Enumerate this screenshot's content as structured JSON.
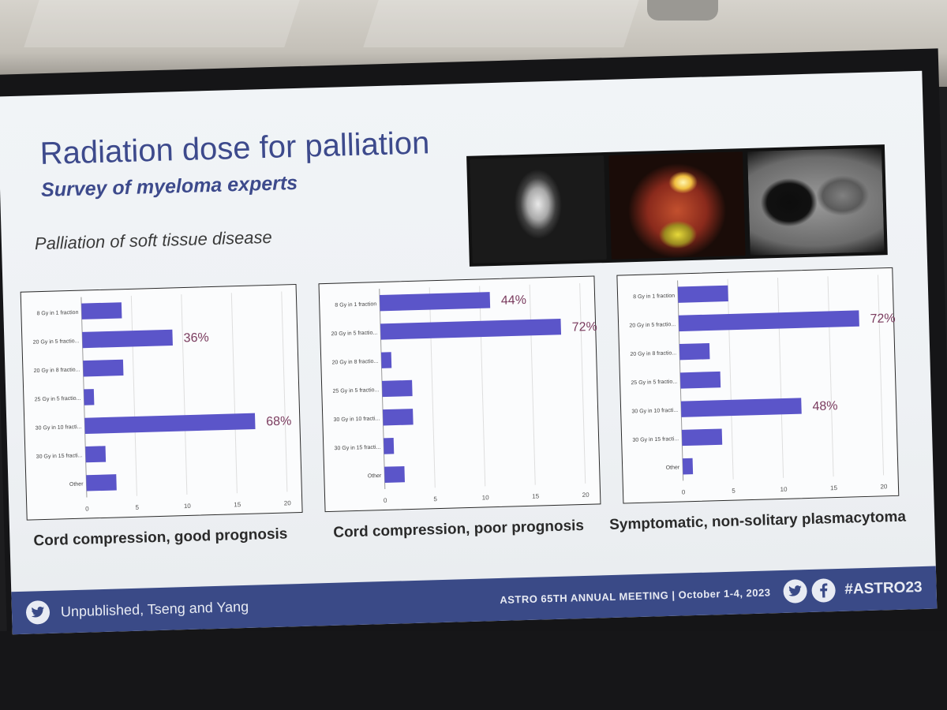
{
  "slide": {
    "title": "Radiation dose for palliation",
    "subtitle": "Survey of myeloma experts",
    "section": "Palliation of soft tissue disease"
  },
  "images": {
    "scan_1": "axial-mri-scan",
    "scan_2": "pet-ct-head-scan",
    "scan_3": "chest-ct-scan"
  },
  "footer": {
    "source": "Unpublished, Tseng and Yang",
    "meeting": "ASTRO 65TH ANNUAL MEETING  |  October 1-4, 2023",
    "hashtag": "#ASTRO23",
    "icons": [
      "twitter-icon",
      "twitter-icon",
      "facebook-icon"
    ]
  },
  "colors": {
    "bar": "#5b55c9",
    "title": "#3d4a8c",
    "annotation": "#7a3b5e",
    "footer_bg": "#3a4a87"
  },
  "chart_data": [
    {
      "type": "bar",
      "orientation": "horizontal",
      "caption": "Cord compression, good prognosis",
      "categories": [
        "8 Gy in 1 fraction",
        "20 Gy in 5 fractio...",
        "20 Gy in 8 fractio...",
        "25 Gy in 5 fractio...",
        "30 Gy in 10 fracti...",
        "30 Gy in 15 fracti...",
        "Other"
      ],
      "values": [
        4,
        9,
        4,
        1,
        17,
        2,
        3
      ],
      "annotations": [
        {
          "index": 1,
          "text": "36%"
        },
        {
          "index": 4,
          "text": "68%"
        }
      ],
      "xticks": [
        "0",
        "5",
        "10",
        "15",
        "20"
      ],
      "xlim": [
        0,
        20
      ],
      "grid": true
    },
    {
      "type": "bar",
      "orientation": "horizontal",
      "caption": "Cord compression, poor prognosis",
      "categories": [
        "8 Gy in 1 fraction",
        "20 Gy in 5 fractio...",
        "20 Gy in 8 fractio...",
        "25 Gy in 5 fractio...",
        "30 Gy in 10 fracti...",
        "30 Gy in 15 fracti...",
        "Other"
      ],
      "values": [
        11,
        18,
        1,
        3,
        3,
        1,
        2
      ],
      "annotations": [
        {
          "index": 0,
          "text": "44%"
        },
        {
          "index": 1,
          "text": "72%"
        }
      ],
      "xticks": [
        "0",
        "5",
        "10",
        "15",
        "20"
      ],
      "xlim": [
        0,
        20
      ],
      "grid": true
    },
    {
      "type": "bar",
      "orientation": "horizontal",
      "caption": "Symptomatic, non-solitary plasmacytoma",
      "categories": [
        "8 Gy in 1 fraction",
        "20 Gy in 5 fractio...",
        "20 Gy in 8 fractio...",
        "25 Gy in 5 fractio...",
        "30 Gy in 10 fracti...",
        "30 Gy in 15 fracti...",
        "Other"
      ],
      "values": [
        5,
        18,
        3,
        4,
        12,
        4,
        1
      ],
      "annotations": [
        {
          "index": 1,
          "text": "72%"
        },
        {
          "index": 4,
          "text": "48%"
        }
      ],
      "xticks": [
        "0",
        "5",
        "10",
        "15",
        "20"
      ],
      "xlim": [
        0,
        20
      ],
      "grid": true
    }
  ]
}
